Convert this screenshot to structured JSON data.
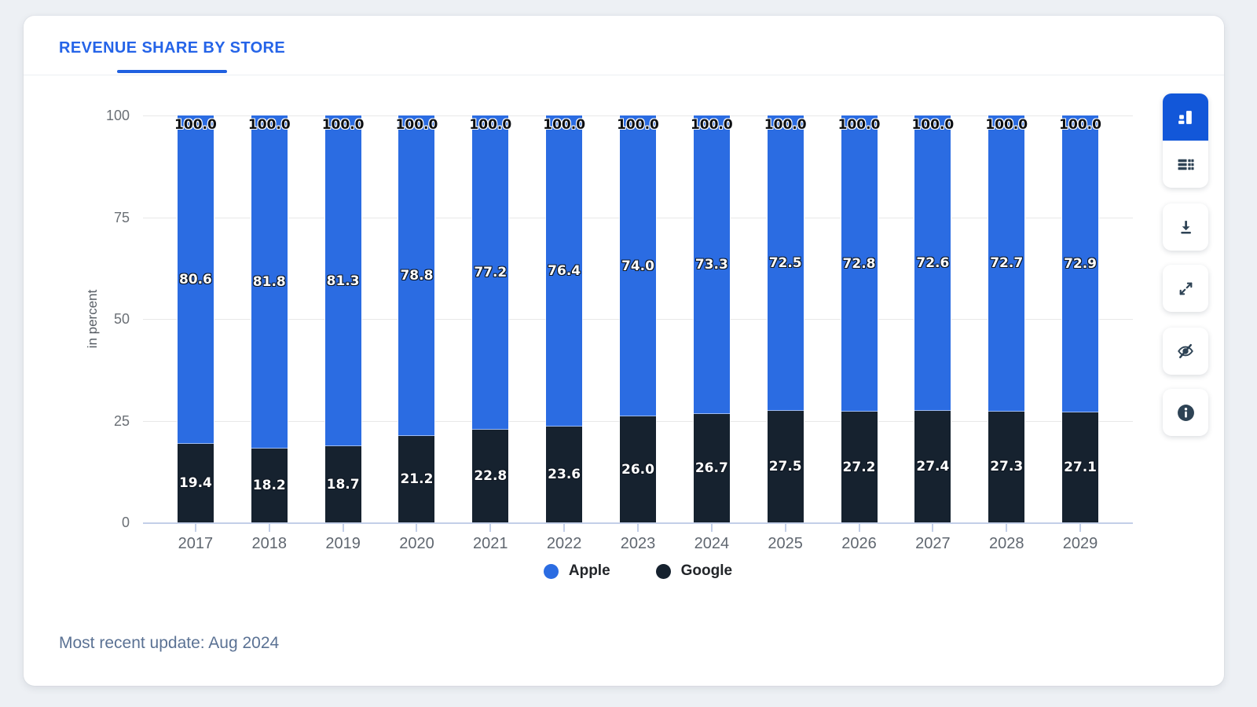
{
  "colors": {
    "accent_blue": "#2564e8",
    "active_button_blue": "#1257d9",
    "apple_blue": "#2b6ce2",
    "google_dark": "#16222f",
    "icon_color": "#2e4355"
  },
  "header": {
    "tab_title": "REVENUE SHARE BY STORE"
  },
  "toolbar": {
    "buttons": [
      {
        "icon": "chart-view-icon",
        "active": true,
        "group": 1
      },
      {
        "icon": "table-view-icon",
        "active": false,
        "group": 1
      },
      {
        "icon": "download-icon",
        "active": false,
        "group": 2
      },
      {
        "icon": "fullscreen-icon",
        "active": false,
        "group": 3
      },
      {
        "icon": "hide-values-icon",
        "active": false,
        "group": 4
      },
      {
        "icon": "info-icon",
        "active": false,
        "group": 5
      }
    ]
  },
  "chart_data": {
    "type": "bar",
    "stacked": true,
    "categories": [
      "2017",
      "2018",
      "2019",
      "2020",
      "2021",
      "2022",
      "2023",
      "2024",
      "2025",
      "2026",
      "2027",
      "2028",
      "2029"
    ],
    "series": [
      {
        "name": "Apple",
        "color": "#2b6ce2",
        "values": [
          80.6,
          81.8,
          81.3,
          78.8,
          77.2,
          76.4,
          74.0,
          73.3,
          72.5,
          72.8,
          72.6,
          72.7,
          72.9
        ]
      },
      {
        "name": "Google",
        "color": "#16222f",
        "values": [
          19.4,
          18.2,
          18.7,
          21.2,
          22.8,
          23.6,
          26.0,
          26.7,
          27.5,
          27.2,
          27.4,
          27.3,
          27.1
        ]
      }
    ],
    "total_labels": [
      "100.0",
      "100.0",
      "100.0",
      "100.0",
      "100.0",
      "100.0",
      "100.0",
      "100.0",
      "100.0",
      "100.0",
      "100.0",
      "100.0",
      "100.0"
    ],
    "ylabel": "in percent",
    "yticks": [
      0,
      25,
      50,
      75,
      100
    ],
    "ylim": [
      0,
      100
    ],
    "grid": true,
    "legend_position": "bottom"
  },
  "footer": {
    "note": "Most recent update: Aug 2024"
  }
}
